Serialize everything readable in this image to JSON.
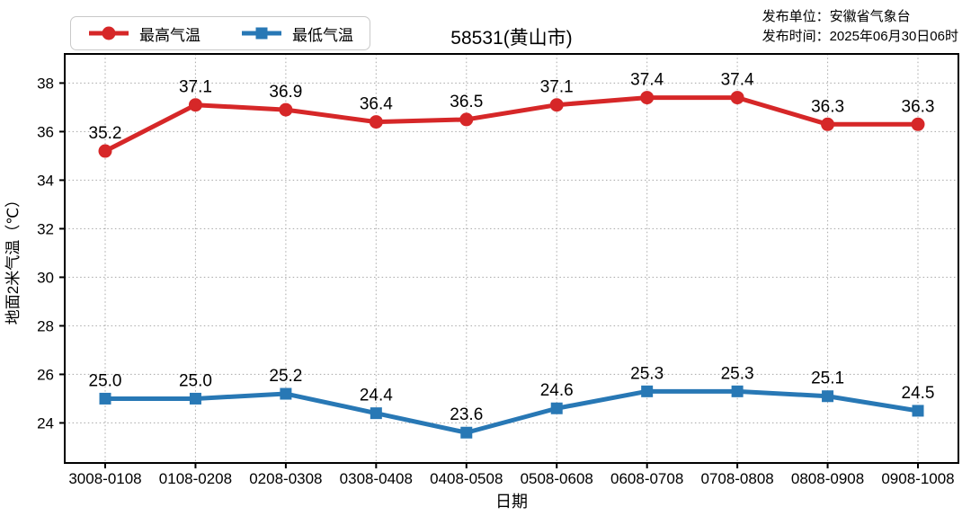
{
  "header": {
    "title": "58531(黄山市)",
    "publisher": "发布单位：安徽省气象台",
    "publish_time": "发布时间：2025年06月30日06时"
  },
  "legend": {
    "items": [
      {
        "label": "最高气温",
        "color": "#d62728",
        "marker": "circle"
      },
      {
        "label": "最低气温",
        "color": "#2878b5",
        "marker": "square"
      }
    ]
  },
  "chart_data": {
    "type": "line",
    "title": "58531(黄山市)",
    "station_id": "58531",
    "station_name": "黄山市",
    "xlabel": "日期",
    "ylabel": "地面2米气温（℃）",
    "categories": [
      "3008-0108",
      "0108-0208",
      "0208-0308",
      "0308-0408",
      "0408-0508",
      "0508-0608",
      "0608-0708",
      "0708-0808",
      "0808-0908",
      "0908-1008"
    ],
    "series": [
      {
        "name": "最高气温",
        "color": "#d62728",
        "marker": "circle",
        "values": [
          35.2,
          37.1,
          36.9,
          36.4,
          36.5,
          37.1,
          37.4,
          37.4,
          36.3,
          36.3
        ]
      },
      {
        "name": "最低气温",
        "color": "#2878b5",
        "marker": "square",
        "values": [
          25.0,
          25.0,
          25.2,
          24.4,
          23.6,
          24.6,
          25.3,
          25.3,
          25.1,
          24.5
        ]
      }
    ],
    "yticks": [
      24,
      26,
      28,
      30,
      32,
      34,
      36,
      38
    ],
    "ylim": [
      22.35,
      39.2
    ],
    "grid": "dotted",
    "legend_position": "top-left",
    "data_label_decimals": 1
  }
}
